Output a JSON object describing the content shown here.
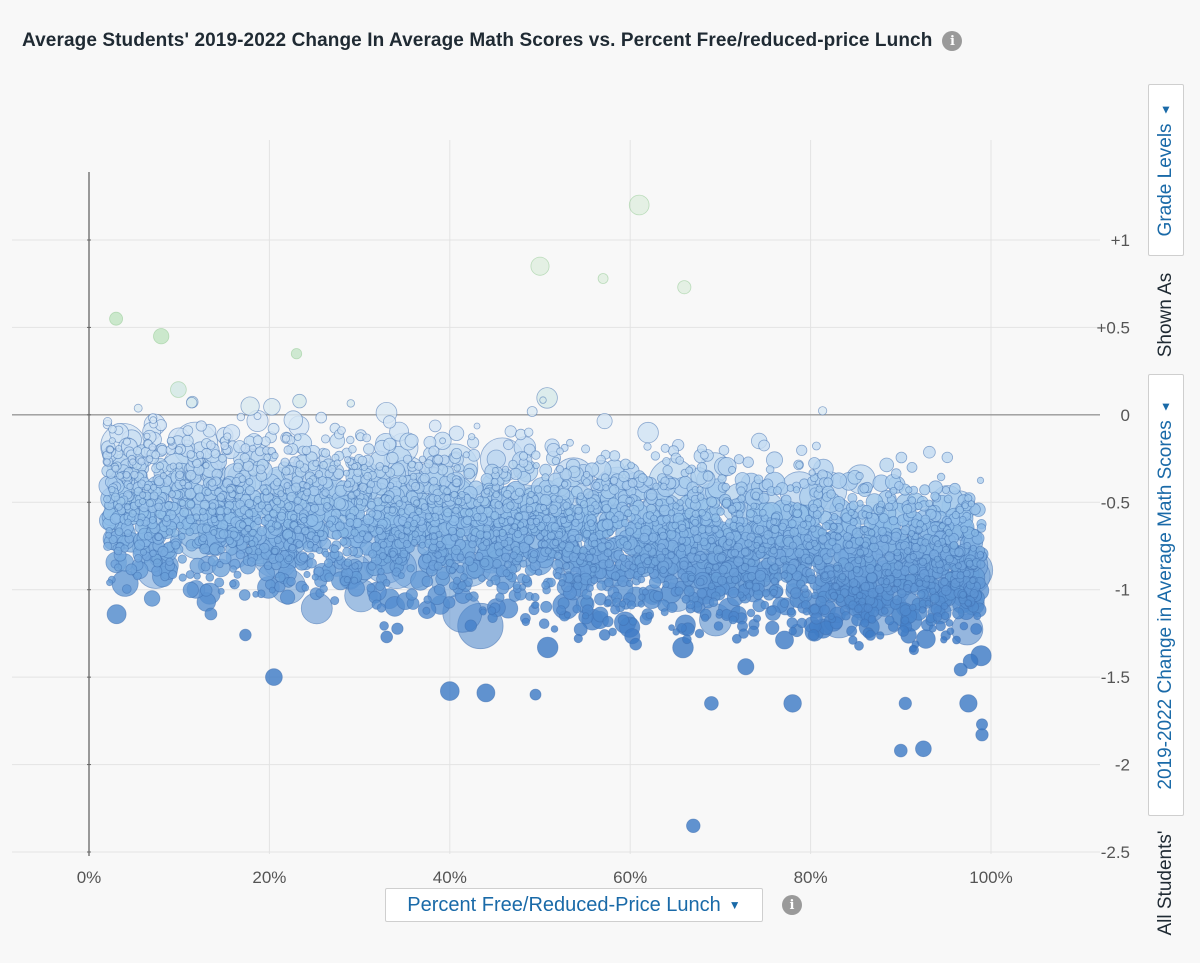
{
  "chart_data": {
    "type": "scatter",
    "title": "Average Students' 2019-2022 Change In Average Math Scores vs. Percent Free/reduced-price Lunch",
    "xlabel": "Percent Free/Reduced-Price Lunch",
    "ylabel": "2019-2022 Change in Average Math Scores",
    "xlim": [
      0,
      100
    ],
    "ylim": [
      -2.5,
      1
    ],
    "x_ticks": [
      "0%",
      "20%",
      "40%",
      "60%",
      "80%",
      "100%"
    ],
    "x_tick_values": [
      0,
      20,
      40,
      60,
      80,
      100
    ],
    "y_ticks": [
      "+1",
      "+0.5",
      "0",
      "-0.5",
      "-1",
      "-1.5",
      "-2",
      "-2.5"
    ],
    "y_tick_values": [
      1,
      0.5,
      0,
      -0.5,
      -1,
      -1.5,
      -2,
      -2.5
    ],
    "grid": true,
    "bubble_size_encodes": "district enrollment",
    "color_scale": {
      "positive": "#bfe3c0",
      "zero": "#dbe9f6",
      "mid": "#8fbde8",
      "negative": "#3a78c4",
      "outline_negative": "#3f6fb0",
      "outline_positive": "#8fc98f"
    },
    "trend": {
      "description": "Downward drift: mean change about -0.45 at 0% FRL to about -0.85 at 100% FRL",
      "mean_at_0": -0.45,
      "mean_at_100": -0.85,
      "spread_sd": 0.33
    },
    "notable_points": [
      {
        "x": 61,
        "y": 1.2
      },
      {
        "x": 50,
        "y": 0.85
      },
      {
        "x": 57,
        "y": 0.78
      },
      {
        "x": 66,
        "y": 0.73
      },
      {
        "x": 3,
        "y": 0.55
      },
      {
        "x": 8,
        "y": 0.45
      },
      {
        "x": 23,
        "y": 0.35
      },
      {
        "x": 67,
        "y": -2.35
      },
      {
        "x": 20.5,
        "y": -1.5
      },
      {
        "x": 40,
        "y": -1.58
      },
      {
        "x": 44,
        "y": -1.59
      },
      {
        "x": 49.5,
        "y": -1.6
      },
      {
        "x": 69,
        "y": -1.65
      },
      {
        "x": 78,
        "y": -1.65
      },
      {
        "x": 90.5,
        "y": -1.65
      },
      {
        "x": 97.5,
        "y": -1.65
      },
      {
        "x": 99,
        "y": -1.77
      },
      {
        "x": 90,
        "y": -1.92
      },
      {
        "x": 92.5,
        "y": -1.91
      },
      {
        "x": 99,
        "y": -1.83
      },
      {
        "x": 33,
        "y": -1.27
      },
      {
        "x": 13,
        "y": -1.07
      },
      {
        "x": 7,
        "y": -1.05
      }
    ]
  },
  "controls": {
    "x_selector_label": "Percent Free/Reduced-Price Lunch",
    "y_selector_label": "2019-2022 Change in Average Math Scores",
    "group_selector_label": "Grade Levels",
    "shown_as_label": "Shown As",
    "prefix_label": "All Students'"
  },
  "icons": {
    "info": "info-icon",
    "dropdown": "caret-down-icon"
  }
}
